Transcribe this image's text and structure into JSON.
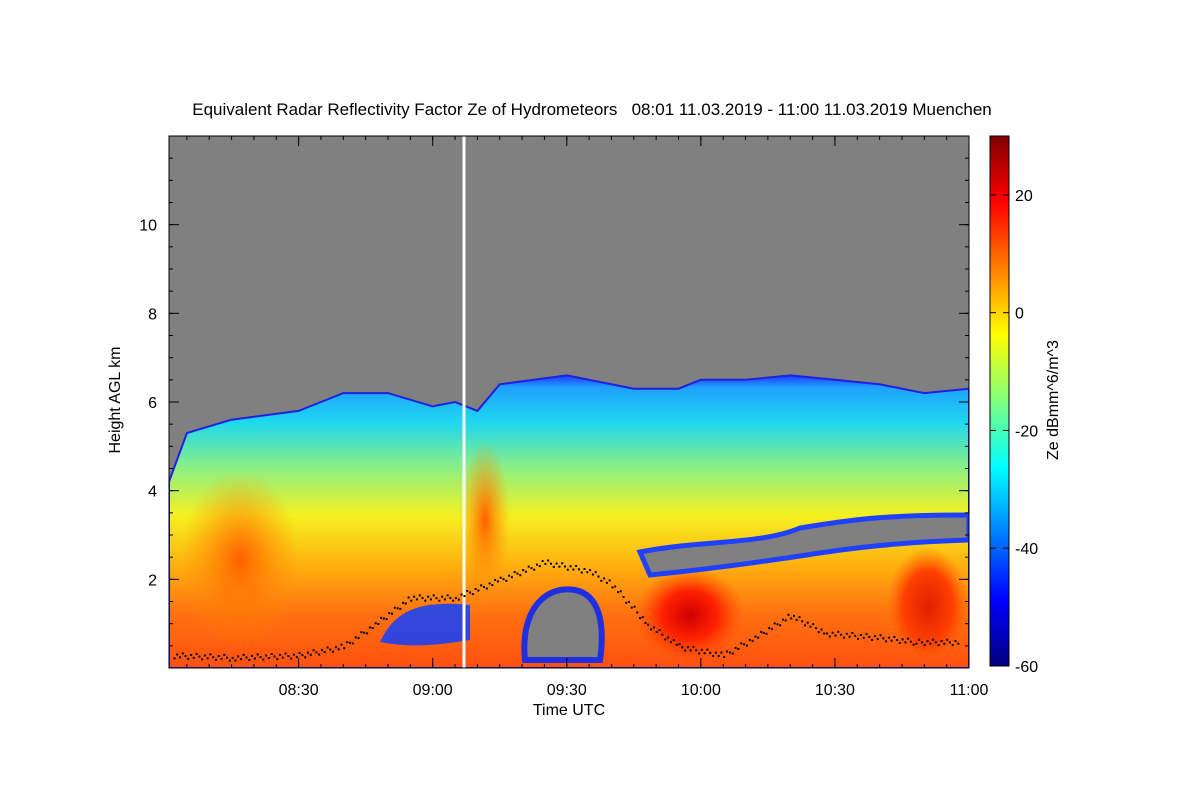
{
  "chart_data": {
    "type": "heatmap",
    "title": "Equivalent Radar Reflectivity Factor Ze of Hydrometeors   08:01 11.03.2019 - 11:00 11.03.2019 Muenchen",
    "xlabel": "Time UTC",
    "ylabel": "Height AGL km",
    "colorbar_label": "Ze dBmm^6/m^3",
    "x_range": [
      "08:01",
      "11:00"
    ],
    "y_range_km": [
      0,
      12
    ],
    "x_ticks": [
      "08:30",
      "09:00",
      "09:30",
      "10:00",
      "10:30",
      "11:00"
    ],
    "y_ticks": [
      2,
      4,
      6,
      8,
      10
    ],
    "colorbar_range": [
      -60,
      30
    ],
    "colorbar_ticks": [
      -60,
      -40,
      -20,
      0,
      20
    ],
    "background_color": "#808080",
    "colormap": [
      "#00007f",
      "#0000ff",
      "#0080ff",
      "#00ffff",
      "#80ff80",
      "#ffff00",
      "#ff8000",
      "#ff0000",
      "#7f0000"
    ],
    "echo_top_km": [
      [
        "08:01",
        4.2
      ],
      [
        "08:05",
        5.3
      ],
      [
        "08:15",
        5.6
      ],
      [
        "08:30",
        5.8
      ],
      [
        "08:40",
        6.2
      ],
      [
        "08:50",
        6.2
      ],
      [
        "09:00",
        5.9
      ],
      [
        "09:05",
        6.0
      ],
      [
        "09:10",
        5.8
      ],
      [
        "09:15",
        6.4
      ],
      [
        "09:30",
        6.6
      ],
      [
        "09:45",
        6.3
      ],
      [
        "09:55",
        6.3
      ],
      [
        "10:00",
        6.5
      ],
      [
        "10:10",
        6.5
      ],
      [
        "10:20",
        6.6
      ],
      [
        "10:30",
        6.5
      ],
      [
        "10:40",
        6.4
      ],
      [
        "10:50",
        6.2
      ],
      [
        "11:00",
        6.3
      ]
    ],
    "data_gap_time": "09:07",
    "cloud_base_km": [
      [
        "08:02",
        0.3
      ],
      [
        "08:15",
        0.25
      ],
      [
        "08:30",
        0.3
      ],
      [
        "08:40",
        0.5
      ],
      [
        "08:47",
        1.0
      ],
      [
        "08:55",
        1.6
      ],
      [
        "09:05",
        1.6
      ],
      [
        "09:15",
        2.0
      ],
      [
        "09:25",
        2.4
      ],
      [
        "09:35",
        2.2
      ],
      [
        "09:40",
        1.9
      ],
      [
        "09:48",
        1.0
      ],
      [
        "09:55",
        0.5
      ],
      [
        "10:05",
        0.3
      ],
      [
        "10:12",
        0.7
      ],
      [
        "10:20",
        1.2
      ],
      [
        "10:28",
        0.8
      ],
      [
        "10:40",
        0.7
      ],
      [
        "10:48",
        0.6
      ],
      [
        "10:58",
        0.6
      ]
    ]
  }
}
